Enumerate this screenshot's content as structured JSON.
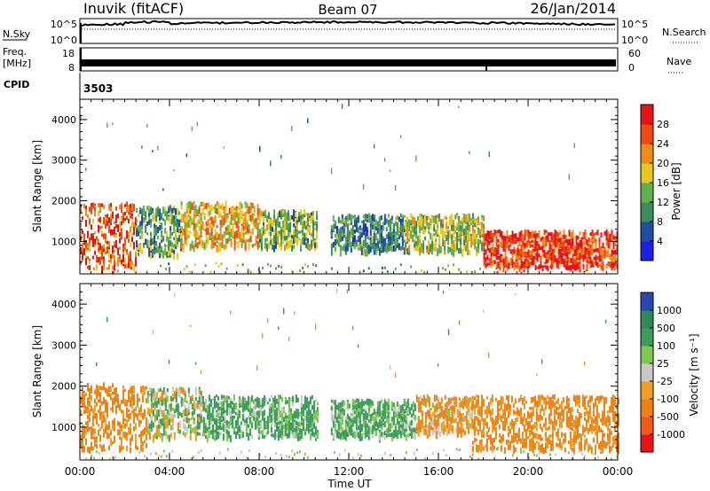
{
  "header": {
    "radar": "Inuvik (fitACF)",
    "beam": "Beam 07",
    "date": "26/Jan/2014"
  },
  "params": {
    "nsky_label": "N.Sky",
    "nsky_hi": "10^5",
    "nsky_lo": "10^0",
    "nsearch_label": "N.Search",
    "nsearch_hi": "10^5",
    "nsearch_lo": "10^0",
    "freq_label": "Freq.",
    "freq_unit": "[MHz]",
    "freq_hi": "18",
    "freq_lo": "8",
    "nave_label": "Nave",
    "nave_hi": "60",
    "nave_lo": "0",
    "cpid_label": "CPID",
    "cpid_value": "3503"
  },
  "axes": {
    "ylabel": "Slant Range [km]",
    "xlabel": "Time UT",
    "yticks": [
      "1000",
      "2000",
      "3000",
      "4000"
    ],
    "xticks": [
      "00:00",
      "04:00",
      "08:00",
      "12:00",
      "16:00",
      "20:00",
      "00:00"
    ]
  },
  "colorbars": {
    "power": {
      "label": "Power [dB]",
      "ticks": [
        "4",
        "8",
        "12",
        "16",
        "20",
        "24",
        "28"
      ],
      "colors": [
        "#1e1ee6",
        "#1f4ea0",
        "#3c8c5c",
        "#5fb04a",
        "#e8c81e",
        "#f08c14",
        "#f04a10",
        "#e61414"
      ]
    },
    "velocity": {
      "label": "Velocity [m s⁻¹]",
      "ticks": [
        "1000",
        "500",
        "100",
        "25",
        "-25",
        "-100",
        "-500",
        "-1000"
      ],
      "colors": [
        "#2846b4",
        "#2e8a5a",
        "#3c9c5a",
        "#7cc850",
        "#c8c8c8",
        "#f0a020",
        "#f08214",
        "#f05a14",
        "#e61414"
      ]
    }
  },
  "chart_data": [
    {
      "type": "heatmap",
      "title": "Power",
      "ylabel": "Slant Range [km]",
      "xlabel": "Time UT",
      "xlim": [
        0,
        24
      ],
      "ylim": [
        200,
        4500
      ],
      "colorbar_label": "Power [dB]",
      "colorbar_range": [
        0,
        32
      ],
      "bands": [
        {
          "t": [
            0.0,
            2.5
          ],
          "r": [
            400,
            2000
          ],
          "level": 26
        },
        {
          "t": [
            2.5,
            4.5
          ],
          "r": [
            700,
            1900
          ],
          "level": 12
        },
        {
          "t": [
            4.5,
            8.0
          ],
          "r": [
            900,
            2000
          ],
          "level": 20
        },
        {
          "t": [
            8.0,
            10.6
          ],
          "r": [
            900,
            1800
          ],
          "level": 14
        },
        {
          "t": [
            11.2,
            14.5
          ],
          "r": [
            800,
            1700
          ],
          "level": 10
        },
        {
          "t": [
            14.5,
            18.0
          ],
          "r": [
            800,
            1700
          ],
          "level": 16
        },
        {
          "t": [
            18.0,
            24.0
          ],
          "r": [
            400,
            1300
          ],
          "level": 28
        }
      ]
    },
    {
      "type": "heatmap",
      "title": "Velocity",
      "ylabel": "Slant Range [km]",
      "xlabel": "Time UT",
      "xlim": [
        0,
        24
      ],
      "ylim": [
        200,
        4500
      ],
      "colorbar_label": "Velocity [m s⁻¹]",
      "colorbar_range": [
        -1000,
        1000
      ],
      "bands": [
        {
          "t": [
            0.0,
            3.0
          ],
          "r": [
            500,
            2100
          ],
          "level": -200
        },
        {
          "t": [
            3.0,
            5.5
          ],
          "r": [
            800,
            2000
          ],
          "level": 50
        },
        {
          "t": [
            5.5,
            10.6
          ],
          "r": [
            800,
            1800
          ],
          "level": 150
        },
        {
          "t": [
            11.2,
            15.0
          ],
          "r": [
            800,
            1700
          ],
          "level": 150
        },
        {
          "t": [
            15.0,
            17.5
          ],
          "r": [
            900,
            1800
          ],
          "level": -120
        },
        {
          "t": [
            17.5,
            24.0
          ],
          "r": [
            500,
            1800
          ],
          "level": -200
        }
      ]
    }
  ]
}
